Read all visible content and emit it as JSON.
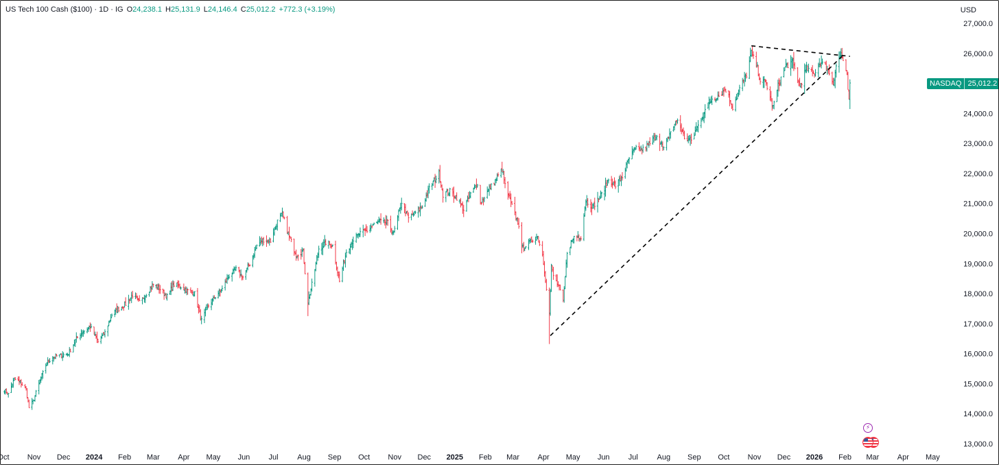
{
  "legend": {
    "symbol": "US Tech 100 Cash ($100) · 1D · IG",
    "open_label": "O",
    "open": "24,238.1",
    "high_label": "H",
    "high": "25,131.9",
    "low_label": "L",
    "low": "24,146.4",
    "close_label": "C",
    "close": "25,012.2",
    "change": "+772.3 (+3.19%)"
  },
  "currency": "USD",
  "price_tag": {
    "name": "NASDAQ",
    "value": "25,012.2"
  },
  "icons": {
    "event": "lightning-event-icon",
    "flag": "us-flag-icon"
  },
  "colors": {
    "up": "#089981",
    "down": "#f23645",
    "trendline": "#000000",
    "text": "#131722"
  },
  "chart_data": {
    "type": "ohlc",
    "timeframe": "1D",
    "y_ticks": [
      "13,000.0",
      "14,000.0",
      "15,000.0",
      "16,000.0",
      "17,000.0",
      "18,000.0",
      "19,000.0",
      "20,000.0",
      "21,000.0",
      "22,000.0",
      "23,000.0",
      "24,000.0",
      "25,000.0",
      "26,000.0",
      "27,000.0"
    ],
    "ylim": [
      12900,
      27450
    ],
    "xlim": [
      "2023-10-01",
      "2026-05-23"
    ],
    "x_ticks": [
      {
        "label": "Oct",
        "date": "2023-10-01",
        "bold": false
      },
      {
        "label": "Nov",
        "date": "2023-11-01",
        "bold": false
      },
      {
        "label": "Dec",
        "date": "2023-12-01",
        "bold": false
      },
      {
        "label": "2024",
        "date": "2024-01-01",
        "bold": true
      },
      {
        "label": "Feb",
        "date": "2024-02-01",
        "bold": false
      },
      {
        "label": "Mar",
        "date": "2024-03-01",
        "bold": false
      },
      {
        "label": "Apr",
        "date": "2024-04-01",
        "bold": false
      },
      {
        "label": "May",
        "date": "2024-05-01",
        "bold": false
      },
      {
        "label": "Jun",
        "date": "2024-06-01",
        "bold": false
      },
      {
        "label": "Jul",
        "date": "2024-07-01",
        "bold": false
      },
      {
        "label": "Aug",
        "date": "2024-08-01",
        "bold": false
      },
      {
        "label": "Sep",
        "date": "2024-09-01",
        "bold": false
      },
      {
        "label": "Oct",
        "date": "2024-10-01",
        "bold": false
      },
      {
        "label": "Nov",
        "date": "2024-11-01",
        "bold": false
      },
      {
        "label": "Dec",
        "date": "2024-12-01",
        "bold": false
      },
      {
        "label": "2025",
        "date": "2025-01-01",
        "bold": true
      },
      {
        "label": "Feb",
        "date": "2025-02-01",
        "bold": false
      },
      {
        "label": "Mar",
        "date": "2025-03-01",
        "bold": false
      },
      {
        "label": "Apr",
        "date": "2025-04-01",
        "bold": false
      },
      {
        "label": "May",
        "date": "2025-05-01",
        "bold": false
      },
      {
        "label": "Jun",
        "date": "2025-06-01",
        "bold": false
      },
      {
        "label": "Jul",
        "date": "2025-07-01",
        "bold": false
      },
      {
        "label": "Aug",
        "date": "2025-08-01",
        "bold": false
      },
      {
        "label": "Sep",
        "date": "2025-09-01",
        "bold": false
      },
      {
        "label": "Oct",
        "date": "2025-10-01",
        "bold": false
      },
      {
        "label": "Nov",
        "date": "2025-11-01",
        "bold": false
      },
      {
        "label": "Dec",
        "date": "2025-12-01",
        "bold": false
      },
      {
        "label": "2026",
        "date": "2026-01-01",
        "bold": true
      },
      {
        "label": "Feb",
        "date": "2026-02-01",
        "bold": false
      },
      {
        "label": "Mar",
        "date": "2026-03-01",
        "bold": false
      },
      {
        "label": "Apr",
        "date": "2026-04-01",
        "bold": false
      },
      {
        "label": "May",
        "date": "2026-05-01",
        "bold": false
      }
    ],
    "close_path": [
      [
        "2023-10-02",
        14800
      ],
      [
        "2023-10-06",
        14650
      ],
      [
        "2023-10-12",
        15150
      ],
      [
        "2023-10-18",
        15050
      ],
      [
        "2023-10-24",
        14800
      ],
      [
        "2023-10-27",
        14200
      ],
      [
        "2023-10-31",
        14400
      ],
      [
        "2023-11-06",
        15000
      ],
      [
        "2023-11-14",
        15700
      ],
      [
        "2023-11-21",
        15900
      ],
      [
        "2023-11-30",
        15950
      ],
      [
        "2023-12-06",
        16000
      ],
      [
        "2023-12-14",
        16500
      ],
      [
        "2023-12-21",
        16750
      ],
      [
        "2023-12-28",
        16900
      ],
      [
        "2024-01-05",
        16400
      ],
      [
        "2024-01-12",
        16700
      ],
      [
        "2024-01-19",
        17300
      ],
      [
        "2024-01-26",
        17500
      ],
      [
        "2024-02-02",
        17650
      ],
      [
        "2024-02-09",
        17950
      ],
      [
        "2024-02-16",
        17700
      ],
      [
        "2024-02-23",
        18000
      ],
      [
        "2024-03-01",
        18300
      ],
      [
        "2024-03-08",
        18150
      ],
      [
        "2024-03-15",
        17900
      ],
      [
        "2024-03-22",
        18300
      ],
      [
        "2024-03-28",
        18250
      ],
      [
        "2024-04-05",
        18100
      ],
      [
        "2024-04-12",
        18000
      ],
      [
        "2024-04-19",
        17100
      ],
      [
        "2024-04-26",
        17600
      ],
      [
        "2024-05-03",
        17900
      ],
      [
        "2024-05-10",
        18150
      ],
      [
        "2024-05-17",
        18600
      ],
      [
        "2024-05-24",
        18800
      ],
      [
        "2024-05-31",
        18550
      ],
      [
        "2024-06-07",
        19000
      ],
      [
        "2024-06-14",
        19600
      ],
      [
        "2024-06-21",
        19800
      ],
      [
        "2024-06-28",
        19750
      ],
      [
        "2024-07-05",
        20400
      ],
      [
        "2024-07-10",
        20650
      ],
      [
        "2024-07-17",
        19900
      ],
      [
        "2024-07-24",
        19300
      ],
      [
        "2024-07-31",
        19400
      ],
      [
        "2024-08-05",
        17700
      ],
      [
        "2024-08-09",
        18300
      ],
      [
        "2024-08-16",
        19500
      ],
      [
        "2024-08-23",
        19700
      ],
      [
        "2024-08-30",
        19600
      ],
      [
        "2024-09-06",
        18400
      ],
      [
        "2024-09-13",
        19400
      ],
      [
        "2024-09-20",
        19800
      ],
      [
        "2024-09-27",
        20000
      ],
      [
        "2024-10-04",
        20100
      ],
      [
        "2024-10-11",
        20300
      ],
      [
        "2024-10-18",
        20400
      ],
      [
        "2024-10-25",
        20350
      ],
      [
        "2024-10-31",
        20000
      ],
      [
        "2024-11-08",
        21050
      ],
      [
        "2024-11-15",
        20500
      ],
      [
        "2024-11-22",
        20700
      ],
      [
        "2024-11-29",
        20900
      ],
      [
        "2024-12-06",
        21500
      ],
      [
        "2024-12-16",
        22000
      ],
      [
        "2024-12-20",
        21300
      ],
      [
        "2024-12-27",
        21400
      ],
      [
        "2025-01-03",
        21200
      ],
      [
        "2025-01-10",
        20800
      ],
      [
        "2025-01-17",
        21300
      ],
      [
        "2025-01-24",
        21700
      ],
      [
        "2025-01-27",
        21000
      ],
      [
        "2025-02-03",
        21400
      ],
      [
        "2025-02-10",
        21700
      ],
      [
        "2025-02-18",
        22150
      ],
      [
        "2025-02-21",
        21600
      ],
      [
        "2025-02-28",
        20900
      ],
      [
        "2025-03-07",
        20300
      ],
      [
        "2025-03-10",
        19500
      ],
      [
        "2025-03-14",
        19600
      ],
      [
        "2025-03-21",
        19800
      ],
      [
        "2025-03-26",
        19900
      ],
      [
        "2025-03-31",
        19300
      ],
      [
        "2025-04-03",
        18500
      ],
      [
        "2025-04-07",
        17300
      ],
      [
        "2025-04-09",
        18900
      ],
      [
        "2025-04-11",
        18600
      ],
      [
        "2025-04-17",
        18200
      ],
      [
        "2025-04-21",
        17700
      ],
      [
        "2025-04-25",
        19400
      ],
      [
        "2025-05-02",
        19900
      ],
      [
        "2025-05-09",
        19900
      ],
      [
        "2025-05-14",
        21100
      ],
      [
        "2025-05-21",
        20900
      ],
      [
        "2025-05-30",
        21300
      ],
      [
        "2025-06-06",
        21800
      ],
      [
        "2025-06-13",
        21600
      ],
      [
        "2025-06-20",
        21900
      ],
      [
        "2025-06-27",
        22500
      ],
      [
        "2025-07-03",
        22800
      ],
      [
        "2025-07-11",
        22800
      ],
      [
        "2025-07-18",
        23000
      ],
      [
        "2025-07-25",
        23300
      ],
      [
        "2025-08-01",
        22800
      ],
      [
        "2025-08-08",
        23400
      ],
      [
        "2025-08-15",
        23800
      ],
      [
        "2025-08-22",
        23200
      ],
      [
        "2025-08-29",
        23100
      ],
      [
        "2025-09-05",
        23600
      ],
      [
        "2025-09-12",
        24100
      ],
      [
        "2025-09-19",
        24500
      ],
      [
        "2025-09-26",
        24600
      ],
      [
        "2025-10-03",
        24800
      ],
      [
        "2025-10-10",
        24200
      ],
      [
        "2025-10-17",
        24800
      ],
      [
        "2025-10-24",
        25300
      ],
      [
        "2025-10-29",
        26000
      ],
      [
        "2025-11-04",
        25500
      ],
      [
        "2025-11-07",
        25100
      ],
      [
        "2025-11-13",
        25000
      ],
      [
        "2025-11-20",
        24200
      ],
      [
        "2025-11-25",
        24900
      ],
      [
        "2025-12-03",
        25600
      ],
      [
        "2025-12-10",
        25700
      ],
      [
        "2025-12-17",
        24900
      ],
      [
        "2025-12-24",
        25500
      ],
      [
        "2025-12-31",
        25300
      ],
      [
        "2026-01-07",
        25700
      ],
      [
        "2026-01-14",
        25500
      ],
      [
        "2026-01-20",
        25000
      ],
      [
        "2026-01-23",
        25600
      ],
      [
        "2026-01-28",
        26000
      ],
      [
        "2026-02-03",
        25200
      ],
      [
        "2026-02-05",
        24400
      ],
      [
        "2026-02-06",
        25012
      ]
    ],
    "trendlines": [
      {
        "style": "dashed",
        "from": [
          "2025-04-08",
          16600
        ],
        "to": [
          "2026-01-29",
          25900
        ]
      },
      {
        "style": "dashed",
        "from": [
          "2025-10-29",
          26250
        ],
        "to": [
          "2026-02-06",
          25900
        ]
      }
    ],
    "last_price": 25012.2
  }
}
